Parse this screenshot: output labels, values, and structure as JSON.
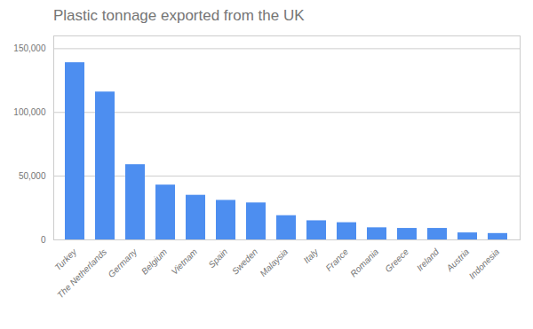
{
  "chart_data": {
    "type": "bar",
    "title": "Plastic tonnage exported from the UK",
    "categories": [
      "Turkey",
      "The Netherlands",
      "Germany",
      "Belgium",
      "Vietnam",
      "Spain",
      "Sweden",
      "Malaysia",
      "Italy",
      "France",
      "Romania",
      "Greece",
      "Ireland",
      "Austria",
      "Indonesia"
    ],
    "values": [
      139000,
      116000,
      59000,
      43000,
      35000,
      31000,
      29000,
      19000,
      15000,
      13500,
      9500,
      9000,
      9000,
      5500,
      5000
    ],
    "color": "#4d8ef0",
    "ylim": [
      0,
      160000
    ],
    "yticks": [
      0,
      {
        "value": 50000,
        "label": "50,000"
      },
      {
        "value": 100000,
        "label": "100,000"
      },
      {
        "value": 150000,
        "label": "150,000"
      }
    ],
    "grid": true
  }
}
